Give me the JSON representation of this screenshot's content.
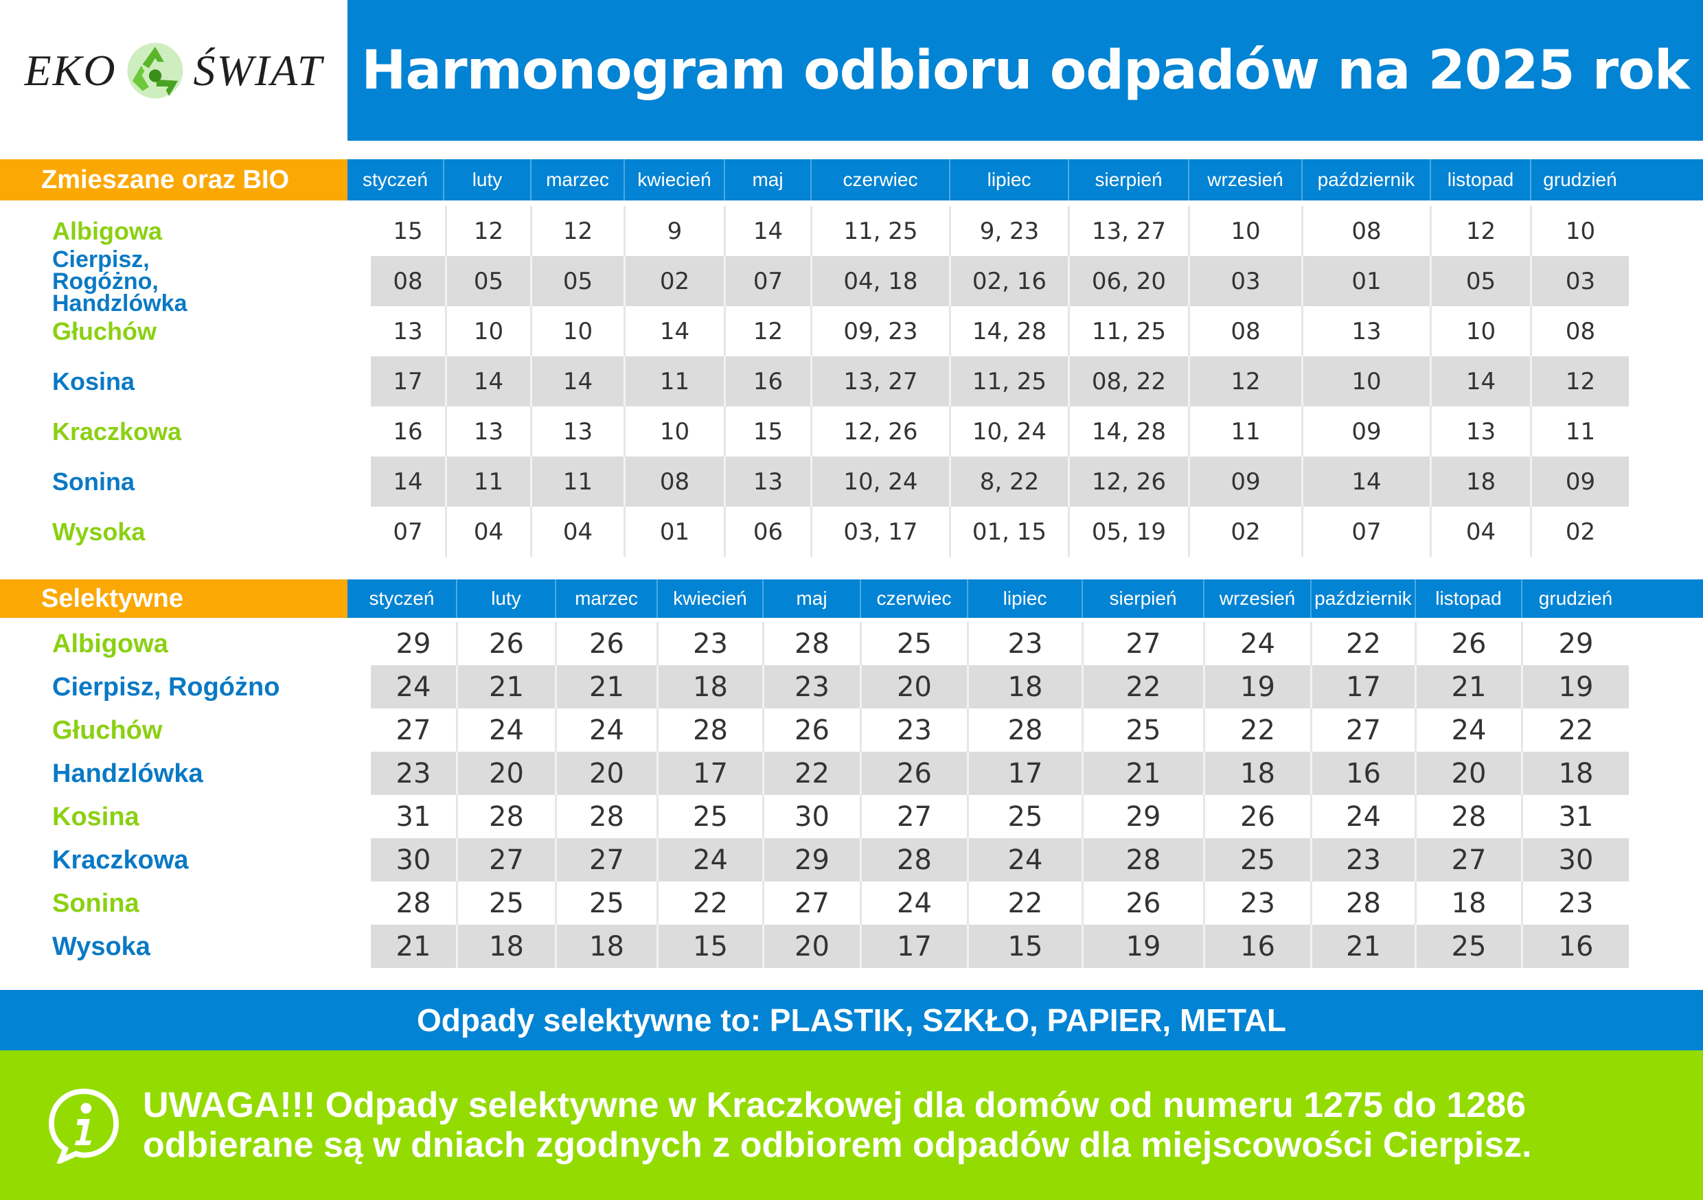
{
  "header": {
    "logo_left": "EKO",
    "logo_right": "ŚWIAT",
    "title": "Harmonogram odbioru odpadów na 2025 rok"
  },
  "months": [
    "styczeń",
    "luty",
    "marzec",
    "kwiecień",
    "maj",
    "czerwiec",
    "lipiec",
    "sierpień",
    "wrzesień",
    "październik",
    "listopad",
    "grudzień"
  ],
  "mixed": {
    "label": "Zmieszane oraz BIO",
    "rows": [
      {
        "name": "Albigowa",
        "values": [
          "15",
          "12",
          "12",
          "9",
          "14",
          "11, 25",
          "9, 23",
          "13, 27",
          "10",
          "08",
          "12",
          "10"
        ]
      },
      {
        "name": "Cierpisz, Rogóżno, Handzlówka",
        "values": [
          "08",
          "05",
          "05",
          "02",
          "07",
          "04, 18",
          "02, 16",
          "06, 20",
          "03",
          "01",
          "05",
          "03"
        ]
      },
      {
        "name": "Głuchów",
        "values": [
          "13",
          "10",
          "10",
          "14",
          "12",
          "09, 23",
          "14, 28",
          "11, 25",
          "08",
          "13",
          "10",
          "08"
        ]
      },
      {
        "name": "Kosina",
        "values": [
          "17",
          "14",
          "14",
          "11",
          "16",
          "13, 27",
          "11, 25",
          "08, 22",
          "12",
          "10",
          "14",
          "12"
        ]
      },
      {
        "name": "Kraczkowa",
        "values": [
          "16",
          "13",
          "13",
          "10",
          "15",
          "12, 26",
          "10, 24",
          "14, 28",
          "11",
          "09",
          "13",
          "11"
        ]
      },
      {
        "name": "Sonina",
        "values": [
          "14",
          "11",
          "11",
          "08",
          "13",
          "10, 24",
          "8, 22",
          "12, 26",
          "09",
          "14",
          "18",
          "09"
        ]
      },
      {
        "name": "Wysoka",
        "values": [
          "07",
          "04",
          "04",
          "01",
          "06",
          "03, 17",
          "01, 15",
          "05, 19",
          "02",
          "07",
          "04",
          "02"
        ]
      }
    ]
  },
  "selective": {
    "label": "Selektywne",
    "rows": [
      {
        "name": "Albigowa",
        "values": [
          "29",
          "26",
          "26",
          "23",
          "28",
          "25",
          "23",
          "27",
          "24",
          "22",
          "26",
          "29"
        ]
      },
      {
        "name": "Cierpisz, Rogóżno",
        "values": [
          "24",
          "21",
          "21",
          "18",
          "23",
          "20",
          "18",
          "22",
          "19",
          "17",
          "21",
          "19"
        ]
      },
      {
        "name": "Głuchów",
        "values": [
          "27",
          "24",
          "24",
          "28",
          "26",
          "23",
          "28",
          "25",
          "22",
          "27",
          "24",
          "22"
        ]
      },
      {
        "name": "Handzlówka",
        "values": [
          "23",
          "20",
          "20",
          "17",
          "22",
          "26",
          "17",
          "21",
          "18",
          "16",
          "20",
          "18"
        ]
      },
      {
        "name": "Kosina",
        "values": [
          "31",
          "28",
          "28",
          "25",
          "30",
          "27",
          "25",
          "29",
          "26",
          "24",
          "28",
          "31"
        ]
      },
      {
        "name": "Kraczkowa",
        "values": [
          "30",
          "27",
          "27",
          "24",
          "29",
          "28",
          "24",
          "28",
          "25",
          "23",
          "27",
          "30"
        ]
      },
      {
        "name": "Sonina",
        "values": [
          "28",
          "25",
          "25",
          "22",
          "27",
          "24",
          "22",
          "26",
          "23",
          "28",
          "18",
          "23"
        ]
      },
      {
        "name": "Wysoka",
        "values": [
          "21",
          "18",
          "18",
          "15",
          "20",
          "17",
          "15",
          "19",
          "16",
          "21",
          "25",
          "16"
        ]
      }
    ]
  },
  "selective_info": "Odpady selektywne to: PLASTIK, SZKŁO, PAPIER, METAL",
  "notice": {
    "line1": "UWAGA!!! Odpady selektywne w Kraczkowej dla domów od numeru 1275 do 1286",
    "line2": "odbierane są w dniach zgodnych z odbiorem odpadów dla miejscowości Cierpisz."
  },
  "colors": {
    "blue": "#0383d3",
    "orange": "#fba805",
    "green": "#93db00",
    "name_green": "#8bd012",
    "name_blue": "#0a79c4",
    "row_shade": "#dcdcdc"
  }
}
